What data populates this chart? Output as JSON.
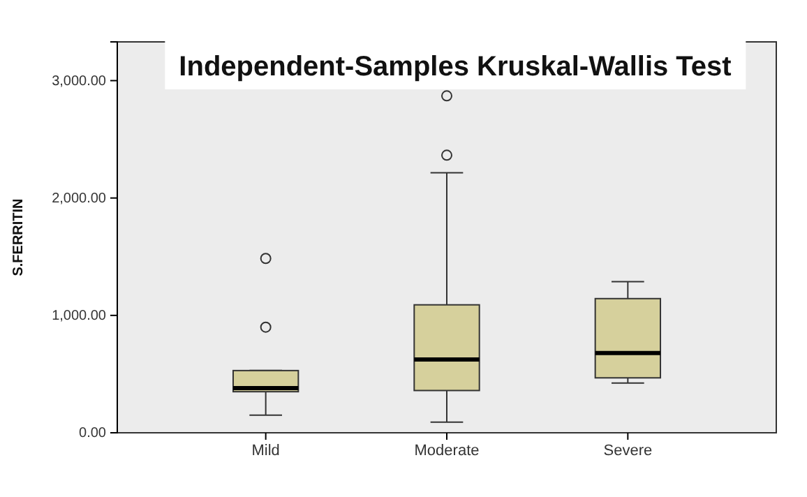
{
  "chart_data": {
    "type": "box",
    "title": "Independent-Samples Kruskal-Wallis Test",
    "ylabel": "S.FERRITIN",
    "categories": [
      "Mild",
      "Moderate",
      "Severe"
    ],
    "boxes": [
      {
        "low": 150,
        "q1": 350,
        "median": 380,
        "q3": 530,
        "high": 530,
        "outliers": [
          900,
          1485
        ]
      },
      {
        "low": 90,
        "q1": 360,
        "median": 625,
        "q3": 1090,
        "high": 2215,
        "outliers": [
          2365,
          2870
        ]
      },
      {
        "low": 424,
        "q1": 468,
        "median": 680,
        "q3": 1143,
        "high": 1287
      }
    ],
    "color": "#d6d09c",
    "ylim": [
      0,
      3330
    ],
    "yticks": [
      {
        "value": 0,
        "label": "0.00"
      },
      {
        "value": 1000,
        "label": "1,000.00"
      },
      {
        "value": 2000,
        "label": "2,000.00"
      },
      {
        "value": 3000,
        "label": "3,000.00"
      }
    ],
    "grid": false
  }
}
